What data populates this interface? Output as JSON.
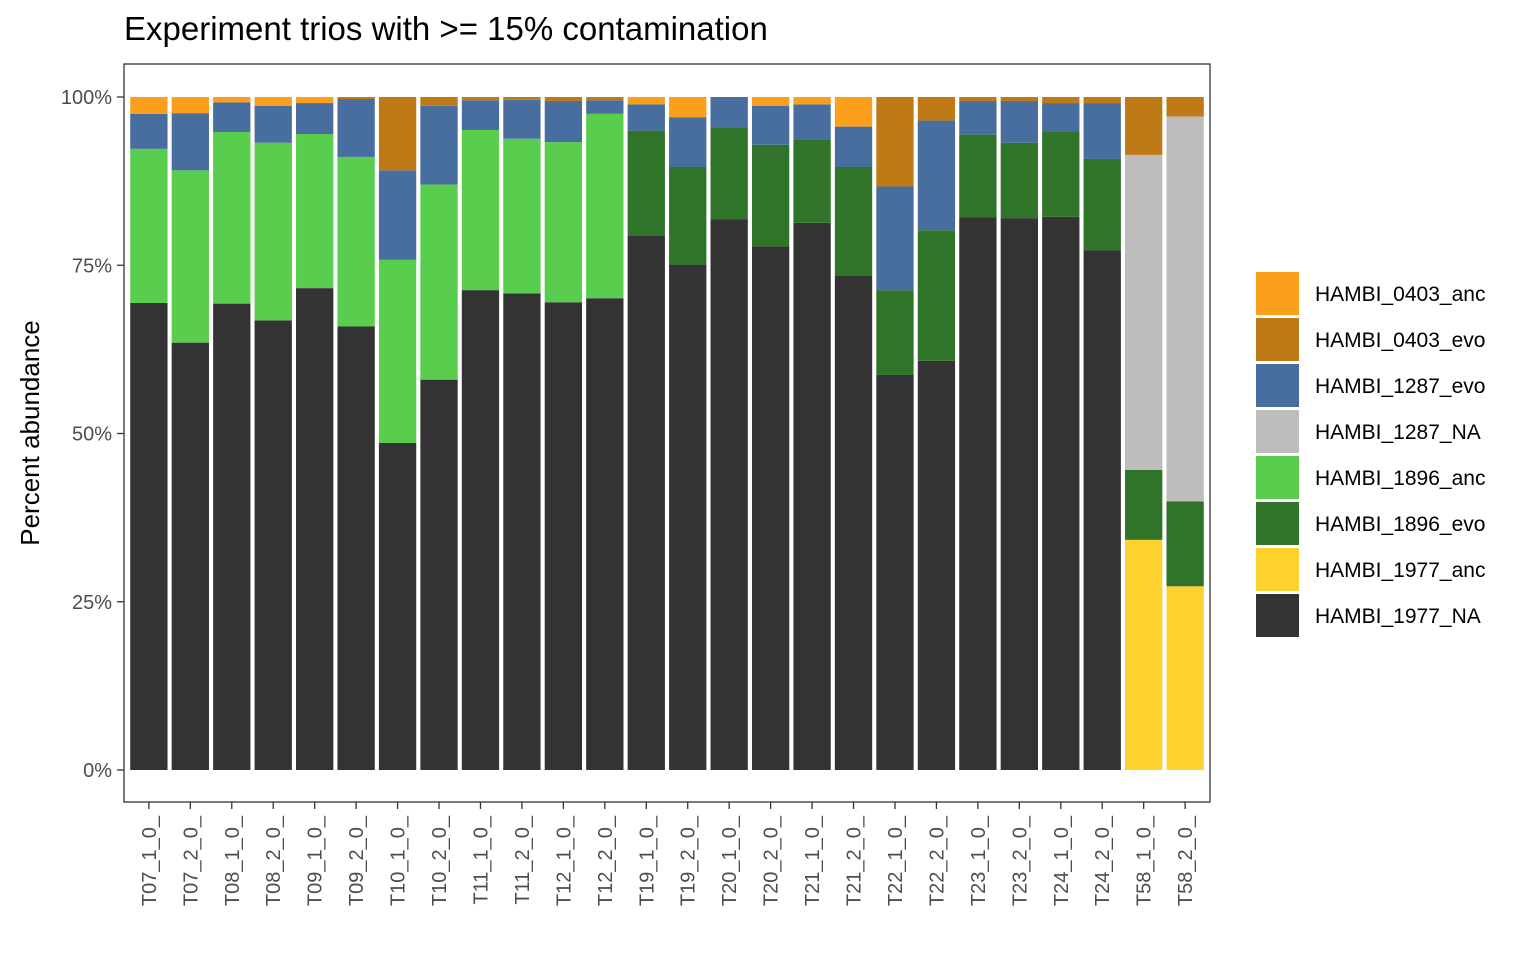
{
  "chart_data": {
    "type": "bar",
    "stacked": true,
    "title": "Experiment trios with >= 15% contamination",
    "xlabel": "",
    "ylabel": "Percent abundance",
    "ylim": [
      0,
      100
    ],
    "y_ticks": [
      "0%",
      "25%",
      "50%",
      "75%",
      "100%"
    ],
    "grid": false,
    "legend_position": "right",
    "categories": [
      "T07_1_0_",
      "T07_2_0_",
      "T08_1_0_",
      "T08_2_0_",
      "T09_1_0_",
      "T09_2_0_",
      "T10_1_0_",
      "T10_2_0_",
      "T11_1_0_",
      "T11_2_0_",
      "T12_1_0_",
      "T12_2_0_",
      "T19_1_0_",
      "T19_2_0_",
      "T20_1_0_",
      "T20_2_0_",
      "T21_1_0_",
      "T21_2_0_",
      "T22_1_0_",
      "T22_2_0_",
      "T23_1_0_",
      "T23_2_0_",
      "T24_1_0_",
      "T24_2_0_",
      "T58_1_0_",
      "T58_2_0_"
    ],
    "series": [
      {
        "name": "HAMBI_1977_NA",
        "color": "#333333",
        "values": [
          69.4,
          63.5,
          69.3,
          66.8,
          71.6,
          65.9,
          48.6,
          58.0,
          71.3,
          70.8,
          69.5,
          70.1,
          79.4,
          75.1,
          81.8,
          77.8,
          81.3,
          73.5,
          58.7,
          60.8,
          82.1,
          82.0,
          82.2,
          77.2,
          0,
          0
        ]
      },
      {
        "name": "HAMBI_1977_anc",
        "color": "#fdd22f",
        "values": [
          0,
          0,
          0,
          0,
          0,
          0,
          0,
          0,
          0,
          0,
          0,
          0,
          0,
          0,
          0,
          0,
          0,
          0,
          0,
          0,
          0,
          0,
          0,
          0,
          34.2,
          27.3
        ]
      },
      {
        "name": "HAMBI_1896_evo",
        "color": "#2f7429",
        "values": [
          0,
          0,
          0,
          0,
          0,
          0,
          0,
          0,
          0,
          0,
          0,
          0,
          15.6,
          14.5,
          13.6,
          15.1,
          12.4,
          16.1,
          12.6,
          19.4,
          12.3,
          11.2,
          12.6,
          13.6,
          10.4,
          12.6
        ]
      },
      {
        "name": "HAMBI_1896_anc",
        "color": "#59cd4d",
        "values": [
          22.9,
          25.6,
          25.5,
          26.4,
          22.9,
          25.2,
          27.2,
          29.0,
          23.8,
          23.0,
          23.8,
          27.4,
          0,
          0,
          0,
          0,
          0,
          0,
          0,
          0,
          0,
          0,
          0,
          0,
          0,
          0
        ]
      },
      {
        "name": "HAMBI_1287_NA",
        "color": "#bebdbb",
        "values": [
          0,
          0,
          0,
          0,
          0,
          0,
          0,
          0,
          0,
          0,
          0,
          0,
          0,
          0,
          0,
          0,
          0,
          0,
          0,
          0,
          0,
          0,
          0,
          0,
          46.8,
          57.2
        ]
      },
      {
        "name": "HAMBI_1287_evo",
        "color": "#486d9f",
        "values": [
          5.2,
          8.5,
          4.4,
          5.5,
          4.6,
          8.6,
          13.3,
          11.7,
          4.4,
          5.8,
          6.1,
          2.0,
          3.9,
          7.4,
          4.6,
          5.8,
          5.2,
          6.0,
          15.4,
          16.3,
          5.0,
          6.2,
          4.3,
          8.3,
          0,
          0
        ]
      },
      {
        "name": "HAMBI_0403_evo",
        "color": "#be7a17",
        "values": [
          0,
          0,
          0,
          0,
          0,
          0.3,
          10.9,
          1.3,
          0.5,
          0.4,
          0.6,
          0.5,
          0,
          0,
          0,
          0,
          0,
          0,
          13.3,
          3.5,
          0.6,
          0.6,
          0.9,
          0.9,
          8.6,
          2.9
        ]
      },
      {
        "name": "HAMBI_0403_anc",
        "color": "#fa9e1c",
        "values": [
          2.5,
          2.4,
          0.8,
          1.3,
          0.9,
          0,
          0,
          0,
          0,
          0,
          0,
          0,
          1.1,
          3.0,
          0,
          1.3,
          1.1,
          4.4,
          0,
          0,
          0,
          0,
          0,
          0,
          0,
          0
        ]
      }
    ],
    "legend": [
      {
        "name": "HAMBI_0403_anc",
        "color": "#fa9e1c"
      },
      {
        "name": "HAMBI_0403_evo",
        "color": "#be7a17"
      },
      {
        "name": "HAMBI_1287_evo",
        "color": "#486d9f"
      },
      {
        "name": "HAMBI_1287_NA",
        "color": "#bebdbb"
      },
      {
        "name": "HAMBI_1896_anc",
        "color": "#59cd4d"
      },
      {
        "name": "HAMBI_1896_evo",
        "color": "#2f7429"
      },
      {
        "name": "HAMBI_1977_anc",
        "color": "#fdd22f"
      },
      {
        "name": "HAMBI_1977_NA",
        "color": "#333333"
      }
    ]
  }
}
